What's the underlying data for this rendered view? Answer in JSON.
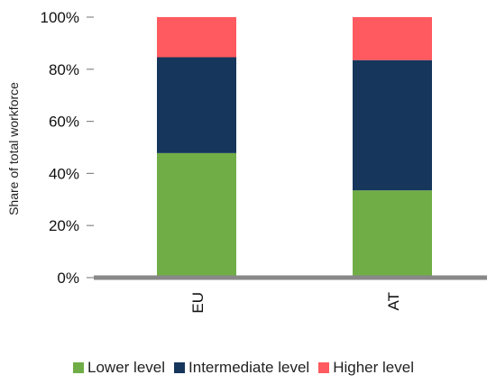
{
  "chart_data": {
    "type": "bar",
    "stacked": true,
    "ylabel": "Share of total workforce",
    "ylim": [
      0,
      100
    ],
    "yticks": [
      "0%",
      "20%",
      "40%",
      "60%",
      "80%",
      "100%"
    ],
    "categories": [
      "EU",
      "AT"
    ],
    "series": [
      {
        "name": "Lower level",
        "color": "#70ad47",
        "values": [
          47.8,
          33.5
        ]
      },
      {
        "name": "Intermediate level",
        "color": "#16365c",
        "values": [
          36.8,
          50.0
        ]
      },
      {
        "name": "Higher level",
        "color": "#ff5a5f",
        "values": [
          15.4,
          16.5
        ]
      }
    ],
    "legend_position": "bottom",
    "grid": false
  }
}
